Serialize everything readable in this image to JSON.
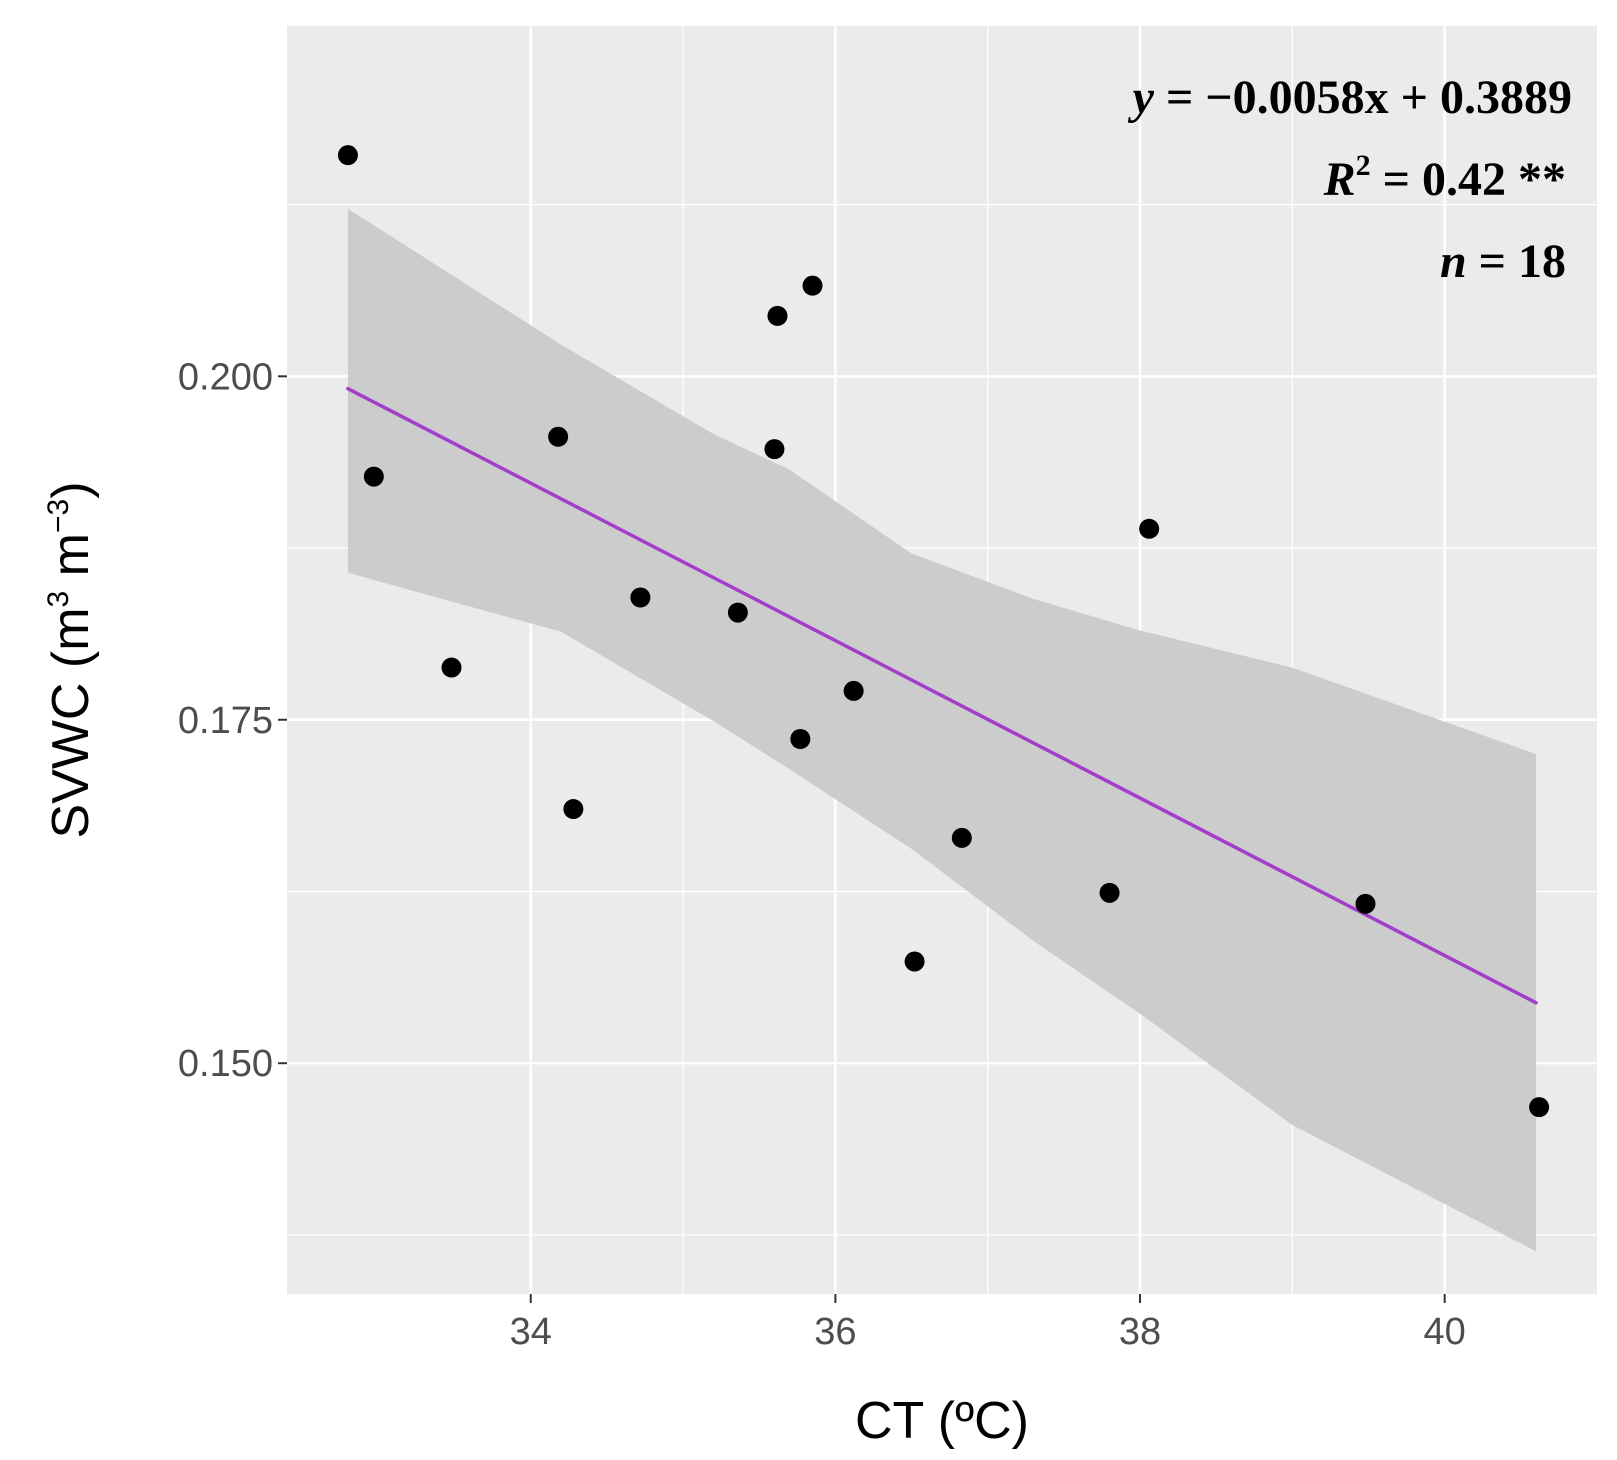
{
  "chart_data": {
    "type": "scatter",
    "title": "",
    "xlabel": "CT (ºC)",
    "ylabel": {
      "base": "SVWC (m",
      "exp1": "3",
      "mid": " m",
      "exp2": "−3",
      "end": ")"
    },
    "xlim": [
      32.4,
      41.0
    ],
    "ylim": [
      0.1332,
      0.2255
    ],
    "xticks": [
      34,
      36,
      38,
      40
    ],
    "xtick_labels": [
      "34",
      "36",
      "38",
      "40"
    ],
    "xminor_ticks": [
      35,
      37,
      39
    ],
    "yticks": [
      0.15,
      0.175,
      0.2
    ],
    "ytick_labels": [
      "0.150",
      "0.175",
      "0.200"
    ],
    "yminor_ticks": [
      0.1375,
      0.1625,
      0.1875,
      0.2125
    ],
    "grid": true,
    "points": [
      {
        "x": 32.8,
        "y": 0.2161
      },
      {
        "x": 32.97,
        "y": 0.1927
      },
      {
        "x": 33.48,
        "y": 0.1788
      },
      {
        "x": 34.18,
        "y": 0.1956
      },
      {
        "x": 34.28,
        "y": 0.1685
      },
      {
        "x": 34.72,
        "y": 0.1839
      },
      {
        "x": 35.36,
        "y": 0.1828
      },
      {
        "x": 35.6,
        "y": 0.1947
      },
      {
        "x": 35.62,
        "y": 0.2044
      },
      {
        "x": 35.77,
        "y": 0.1736
      },
      {
        "x": 35.85,
        "y": 0.2066
      },
      {
        "x": 36.12,
        "y": 0.1771
      },
      {
        "x": 36.52,
        "y": 0.1574
      },
      {
        "x": 36.83,
        "y": 0.1664
      },
      {
        "x": 37.8,
        "y": 0.1624
      },
      {
        "x": 38.06,
        "y": 0.1889
      },
      {
        "x": 39.48,
        "y": 0.1616
      },
      {
        "x": 40.62,
        "y": 0.1468
      }
    ],
    "fit": {
      "x_range": [
        32.8,
        40.6
      ],
      "y_range": [
        0.1991,
        0.1544
      ],
      "color": "#a23ec9",
      "ci_upper": [
        {
          "x": 32.8,
          "y": 0.2122
        },
        {
          "x": 34.2,
          "y": 0.2023
        },
        {
          "x": 35.2,
          "y": 0.1958
        },
        {
          "x": 35.7,
          "y": 0.1932
        },
        {
          "x": 36.5,
          "y": 0.1871
        },
        {
          "x": 37.3,
          "y": 0.1838
        },
        {
          "x": 38.0,
          "y": 0.1815
        },
        {
          "x": 39.0,
          "y": 0.1788
        },
        {
          "x": 40.6,
          "y": 0.1725
        }
      ],
      "ci_lower": [
        {
          "x": 40.6,
          "y": 0.1363
        },
        {
          "x": 39.0,
          "y": 0.1455
        },
        {
          "x": 38.0,
          "y": 0.1536
        },
        {
          "x": 37.3,
          "y": 0.1589
        },
        {
          "x": 36.5,
          "y": 0.1656
        },
        {
          "x": 35.7,
          "y": 0.1714
        },
        {
          "x": 35.2,
          "y": 0.1749
        },
        {
          "x": 34.2,
          "y": 0.1814
        },
        {
          "x": 32.8,
          "y": 0.1857
        }
      ]
    },
    "annotations": {
      "equation": {
        "y": "y",
        "rest": " = −0.0058x + 0.3889"
      },
      "r2": {
        "r": "R",
        "sup": "2",
        "rest": " = 0.42 **"
      },
      "n": {
        "n": "n",
        "rest": " = 18"
      }
    },
    "colors": {
      "panel": "#ebebeb",
      "grid": "#ffffff",
      "point": "#000000",
      "ci": "#cccccc",
      "tick_label": "#4d4d4d"
    }
  }
}
